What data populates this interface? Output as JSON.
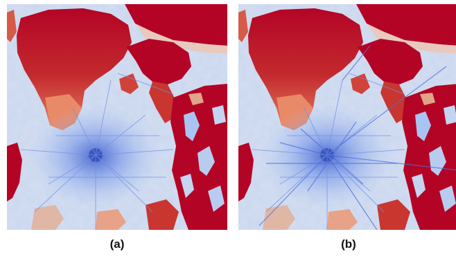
{
  "figure": {
    "panels": [
      {
        "id": "a",
        "label": "(a)"
      },
      {
        "id": "b",
        "label": "(b)"
      }
    ],
    "colormap": {
      "low": "#4a6fe0",
      "mid_low": "#a9c4f2",
      "neutral": "#dcdfe8",
      "mid_high": "#f0a583",
      "high": "#b40426"
    }
  }
}
